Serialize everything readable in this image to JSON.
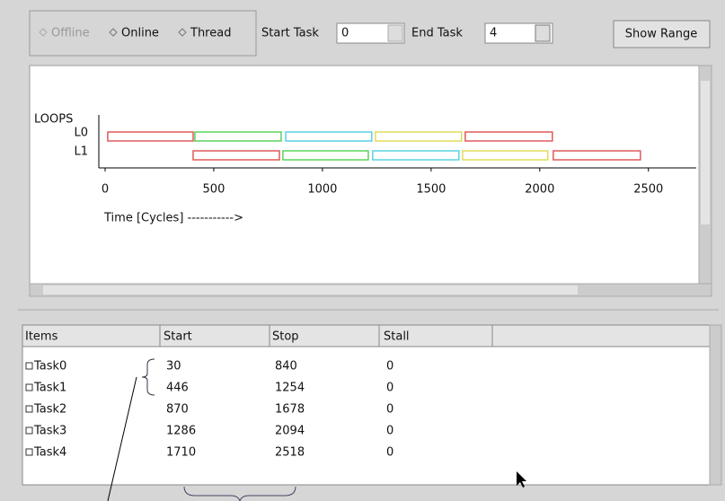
{
  "toolbar": {
    "modes": [
      "Offline",
      "Online",
      "Thread"
    ],
    "start_task_label": "Start Task",
    "start_task": "0",
    "end_task_label": "End Task",
    "end_task": "4",
    "show_range": "Show Range"
  },
  "chart_data": {
    "type": "gantt",
    "y_title": "LOOPS",
    "x_label": "Time [Cycles] ----------->",
    "xlim": [
      0,
      2720
    ],
    "xticks": [
      0,
      500,
      1000,
      1500,
      2000,
      2500
    ],
    "series": [
      {
        "name": "L0",
        "segments": [
          {
            "start": 12,
            "end": 405,
            "color": "#e05a5a"
          },
          {
            "start": 413,
            "end": 810,
            "color": "#5ad45a"
          },
          {
            "start": 831,
            "end": 1227,
            "color": "#5ad2e2"
          },
          {
            "start": 1244,
            "end": 1640,
            "color": "#e0dc5a"
          },
          {
            "start": 1657,
            "end": 2058,
            "color": "#e05a5a"
          }
        ]
      },
      {
        "name": "L1",
        "segments": [
          {
            "start": 405,
            "end": 802,
            "color": "#e05a5a"
          },
          {
            "start": 818,
            "end": 1211,
            "color": "#5ad45a"
          },
          {
            "start": 1231,
            "end": 1628,
            "color": "#5ad2e2"
          },
          {
            "start": 1645,
            "end": 2037,
            "color": "#e0dc5a"
          },
          {
            "start": 2062,
            "end": 2463,
            "color": "#e05a5a"
          }
        ]
      }
    ]
  },
  "table": {
    "columns": [
      "Items",
      "Start",
      "Stop",
      "Stall"
    ],
    "rows": [
      [
        "Task0",
        30,
        840,
        0
      ],
      [
        "Task1",
        446,
        1254,
        0
      ],
      [
        "Task2",
        870,
        1678,
        0
      ],
      [
        "Task3",
        1286,
        2094,
        0
      ],
      [
        "Task4",
        1710,
        2518,
        0
      ]
    ]
  }
}
